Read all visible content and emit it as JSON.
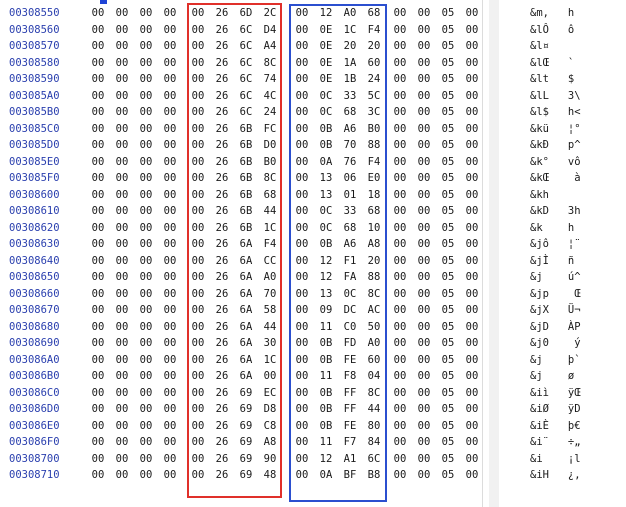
{
  "offsets": [
    "00308550",
    "00308560",
    "00308570",
    "00308580",
    "00308590",
    "003085A0",
    "003085B0",
    "003085C0",
    "003085D0",
    "003085E0",
    "003085F0",
    "00308600",
    "00308610",
    "00308620",
    "00308630",
    "00308640",
    "00308650",
    "00308660",
    "00308670",
    "00308680",
    "00308690",
    "003086A0",
    "003086B0",
    "003086C0",
    "003086D0",
    "003086E0",
    "003086F0",
    "00308700",
    "00308710"
  ],
  "hex_rows": [
    [
      "00",
      "00",
      "00",
      "00",
      "00",
      "26",
      "6D",
      "2C",
      "00",
      "12",
      "A0",
      "68",
      "00",
      "00",
      "05",
      "00"
    ],
    [
      "00",
      "00",
      "00",
      "00",
      "00",
      "26",
      "6C",
      "D4",
      "00",
      "0E",
      "1C",
      "F4",
      "00",
      "00",
      "05",
      "00"
    ],
    [
      "00",
      "00",
      "00",
      "00",
      "00",
      "26",
      "6C",
      "A4",
      "00",
      "0E",
      "20",
      "20",
      "00",
      "00",
      "05",
      "00"
    ],
    [
      "00",
      "00",
      "00",
      "00",
      "00",
      "26",
      "6C",
      "8C",
      "00",
      "0E",
      "1A",
      "60",
      "00",
      "00",
      "05",
      "00"
    ],
    [
      "00",
      "00",
      "00",
      "00",
      "00",
      "26",
      "6C",
      "74",
      "00",
      "0E",
      "1B",
      "24",
      "00",
      "00",
      "05",
      "00"
    ],
    [
      "00",
      "00",
      "00",
      "00",
      "00",
      "26",
      "6C",
      "4C",
      "00",
      "0C",
      "33",
      "5C",
      "00",
      "00",
      "05",
      "00"
    ],
    [
      "00",
      "00",
      "00",
      "00",
      "00",
      "26",
      "6C",
      "24",
      "00",
      "0C",
      "68",
      "3C",
      "00",
      "00",
      "05",
      "00"
    ],
    [
      "00",
      "00",
      "00",
      "00",
      "00",
      "26",
      "6B",
      "FC",
      "00",
      "0B",
      "A6",
      "B0",
      "00",
      "00",
      "05",
      "00"
    ],
    [
      "00",
      "00",
      "00",
      "00",
      "00",
      "26",
      "6B",
      "D0",
      "00",
      "0B",
      "70",
      "88",
      "00",
      "00",
      "05",
      "00"
    ],
    [
      "00",
      "00",
      "00",
      "00",
      "00",
      "26",
      "6B",
      "B0",
      "00",
      "0A",
      "76",
      "F4",
      "00",
      "00",
      "05",
      "00"
    ],
    [
      "00",
      "00",
      "00",
      "00",
      "00",
      "26",
      "6B",
      "8C",
      "00",
      "13",
      "06",
      "E0",
      "00",
      "00",
      "05",
      "00"
    ],
    [
      "00",
      "00",
      "00",
      "00",
      "00",
      "26",
      "6B",
      "68",
      "00",
      "13",
      "01",
      "18",
      "00",
      "00",
      "05",
      "00"
    ],
    [
      "00",
      "00",
      "00",
      "00",
      "00",
      "26",
      "6B",
      "44",
      "00",
      "0C",
      "33",
      "68",
      "00",
      "00",
      "05",
      "00"
    ],
    [
      "00",
      "00",
      "00",
      "00",
      "00",
      "26",
      "6B",
      "1C",
      "00",
      "0C",
      "68",
      "10",
      "00",
      "00",
      "05",
      "00"
    ],
    [
      "00",
      "00",
      "00",
      "00",
      "00",
      "26",
      "6A",
      "F4",
      "00",
      "0B",
      "A6",
      "A8",
      "00",
      "00",
      "05",
      "00"
    ],
    [
      "00",
      "00",
      "00",
      "00",
      "00",
      "26",
      "6A",
      "CC",
      "00",
      "12",
      "F1",
      "20",
      "00",
      "00",
      "05",
      "00"
    ],
    [
      "00",
      "00",
      "00",
      "00",
      "00",
      "26",
      "6A",
      "A0",
      "00",
      "12",
      "FA",
      "88",
      "00",
      "00",
      "05",
      "00"
    ],
    [
      "00",
      "00",
      "00",
      "00",
      "00",
      "26",
      "6A",
      "70",
      "00",
      "13",
      "0C",
      "8C",
      "00",
      "00",
      "05",
      "00"
    ],
    [
      "00",
      "00",
      "00",
      "00",
      "00",
      "26",
      "6A",
      "58",
      "00",
      "09",
      "DC",
      "AC",
      "00",
      "00",
      "05",
      "00"
    ],
    [
      "00",
      "00",
      "00",
      "00",
      "00",
      "26",
      "6A",
      "44",
      "00",
      "11",
      "C0",
      "50",
      "00",
      "00",
      "05",
      "00"
    ],
    [
      "00",
      "00",
      "00",
      "00",
      "00",
      "26",
      "6A",
      "30",
      "00",
      "0B",
      "FD",
      "A0",
      "00",
      "00",
      "05",
      "00"
    ],
    [
      "00",
      "00",
      "00",
      "00",
      "00",
      "26",
      "6A",
      "1C",
      "00",
      "0B",
      "FE",
      "60",
      "00",
      "00",
      "05",
      "00"
    ],
    [
      "00",
      "00",
      "00",
      "00",
      "00",
      "26",
      "6A",
      "00",
      "00",
      "11",
      "F8",
      "04",
      "00",
      "00",
      "05",
      "00"
    ],
    [
      "00",
      "00",
      "00",
      "00",
      "00",
      "26",
      "69",
      "EC",
      "00",
      "0B",
      "FF",
      "8C",
      "00",
      "00",
      "05",
      "00"
    ],
    [
      "00",
      "00",
      "00",
      "00",
      "00",
      "26",
      "69",
      "D8",
      "00",
      "0B",
      "FF",
      "44",
      "00",
      "00",
      "05",
      "00"
    ],
    [
      "00",
      "00",
      "00",
      "00",
      "00",
      "26",
      "69",
      "C8",
      "00",
      "0B",
      "FE",
      "80",
      "00",
      "00",
      "05",
      "00"
    ],
    [
      "00",
      "00",
      "00",
      "00",
      "00",
      "26",
      "69",
      "A8",
      "00",
      "11",
      "F7",
      "84",
      "00",
      "00",
      "05",
      "00"
    ],
    [
      "00",
      "00",
      "00",
      "00",
      "00",
      "26",
      "69",
      "90",
      "00",
      "12",
      "A1",
      "6C",
      "00",
      "00",
      "05",
      "00"
    ],
    [
      "00",
      "00",
      "00",
      "00",
      "00",
      "26",
      "69",
      "48",
      "00",
      "0A",
      "BF",
      "B8",
      "00",
      "00",
      "05",
      "00"
    ]
  ],
  "ascii_rows": [
    "&m,   h",
    "&lÔ   ô",
    "&l¤",
    "&lŒ   `",
    "&lt   $",
    "&lL   3\\",
    "&l$   h<",
    "&kü   ¦°",
    "&kÐ   p^",
    "&k°   vô",
    "&kŒ    à",
    "&kh",
    "&kD   3h",
    "&k    h",
    "&jô   ¦¨",
    "&jÌ   ñ",
    "&j    ú^",
    "&jp    Œ",
    "&jX   Ü¬",
    "&jD   ÀP",
    "&j0    ý",
    "&j    þ`",
    "&j    ø",
    "&iì   ÿŒ",
    "&iØ   ÿD",
    "&iÈ   þ€",
    "&i¨   ÷„",
    "&i    ¡l",
    "&iH   ¿,"
  ],
  "highlight_colors": {
    "red_box": "#e0302a",
    "blue_box": "#2b4fcf",
    "offset_text": "#2a3fae"
  }
}
